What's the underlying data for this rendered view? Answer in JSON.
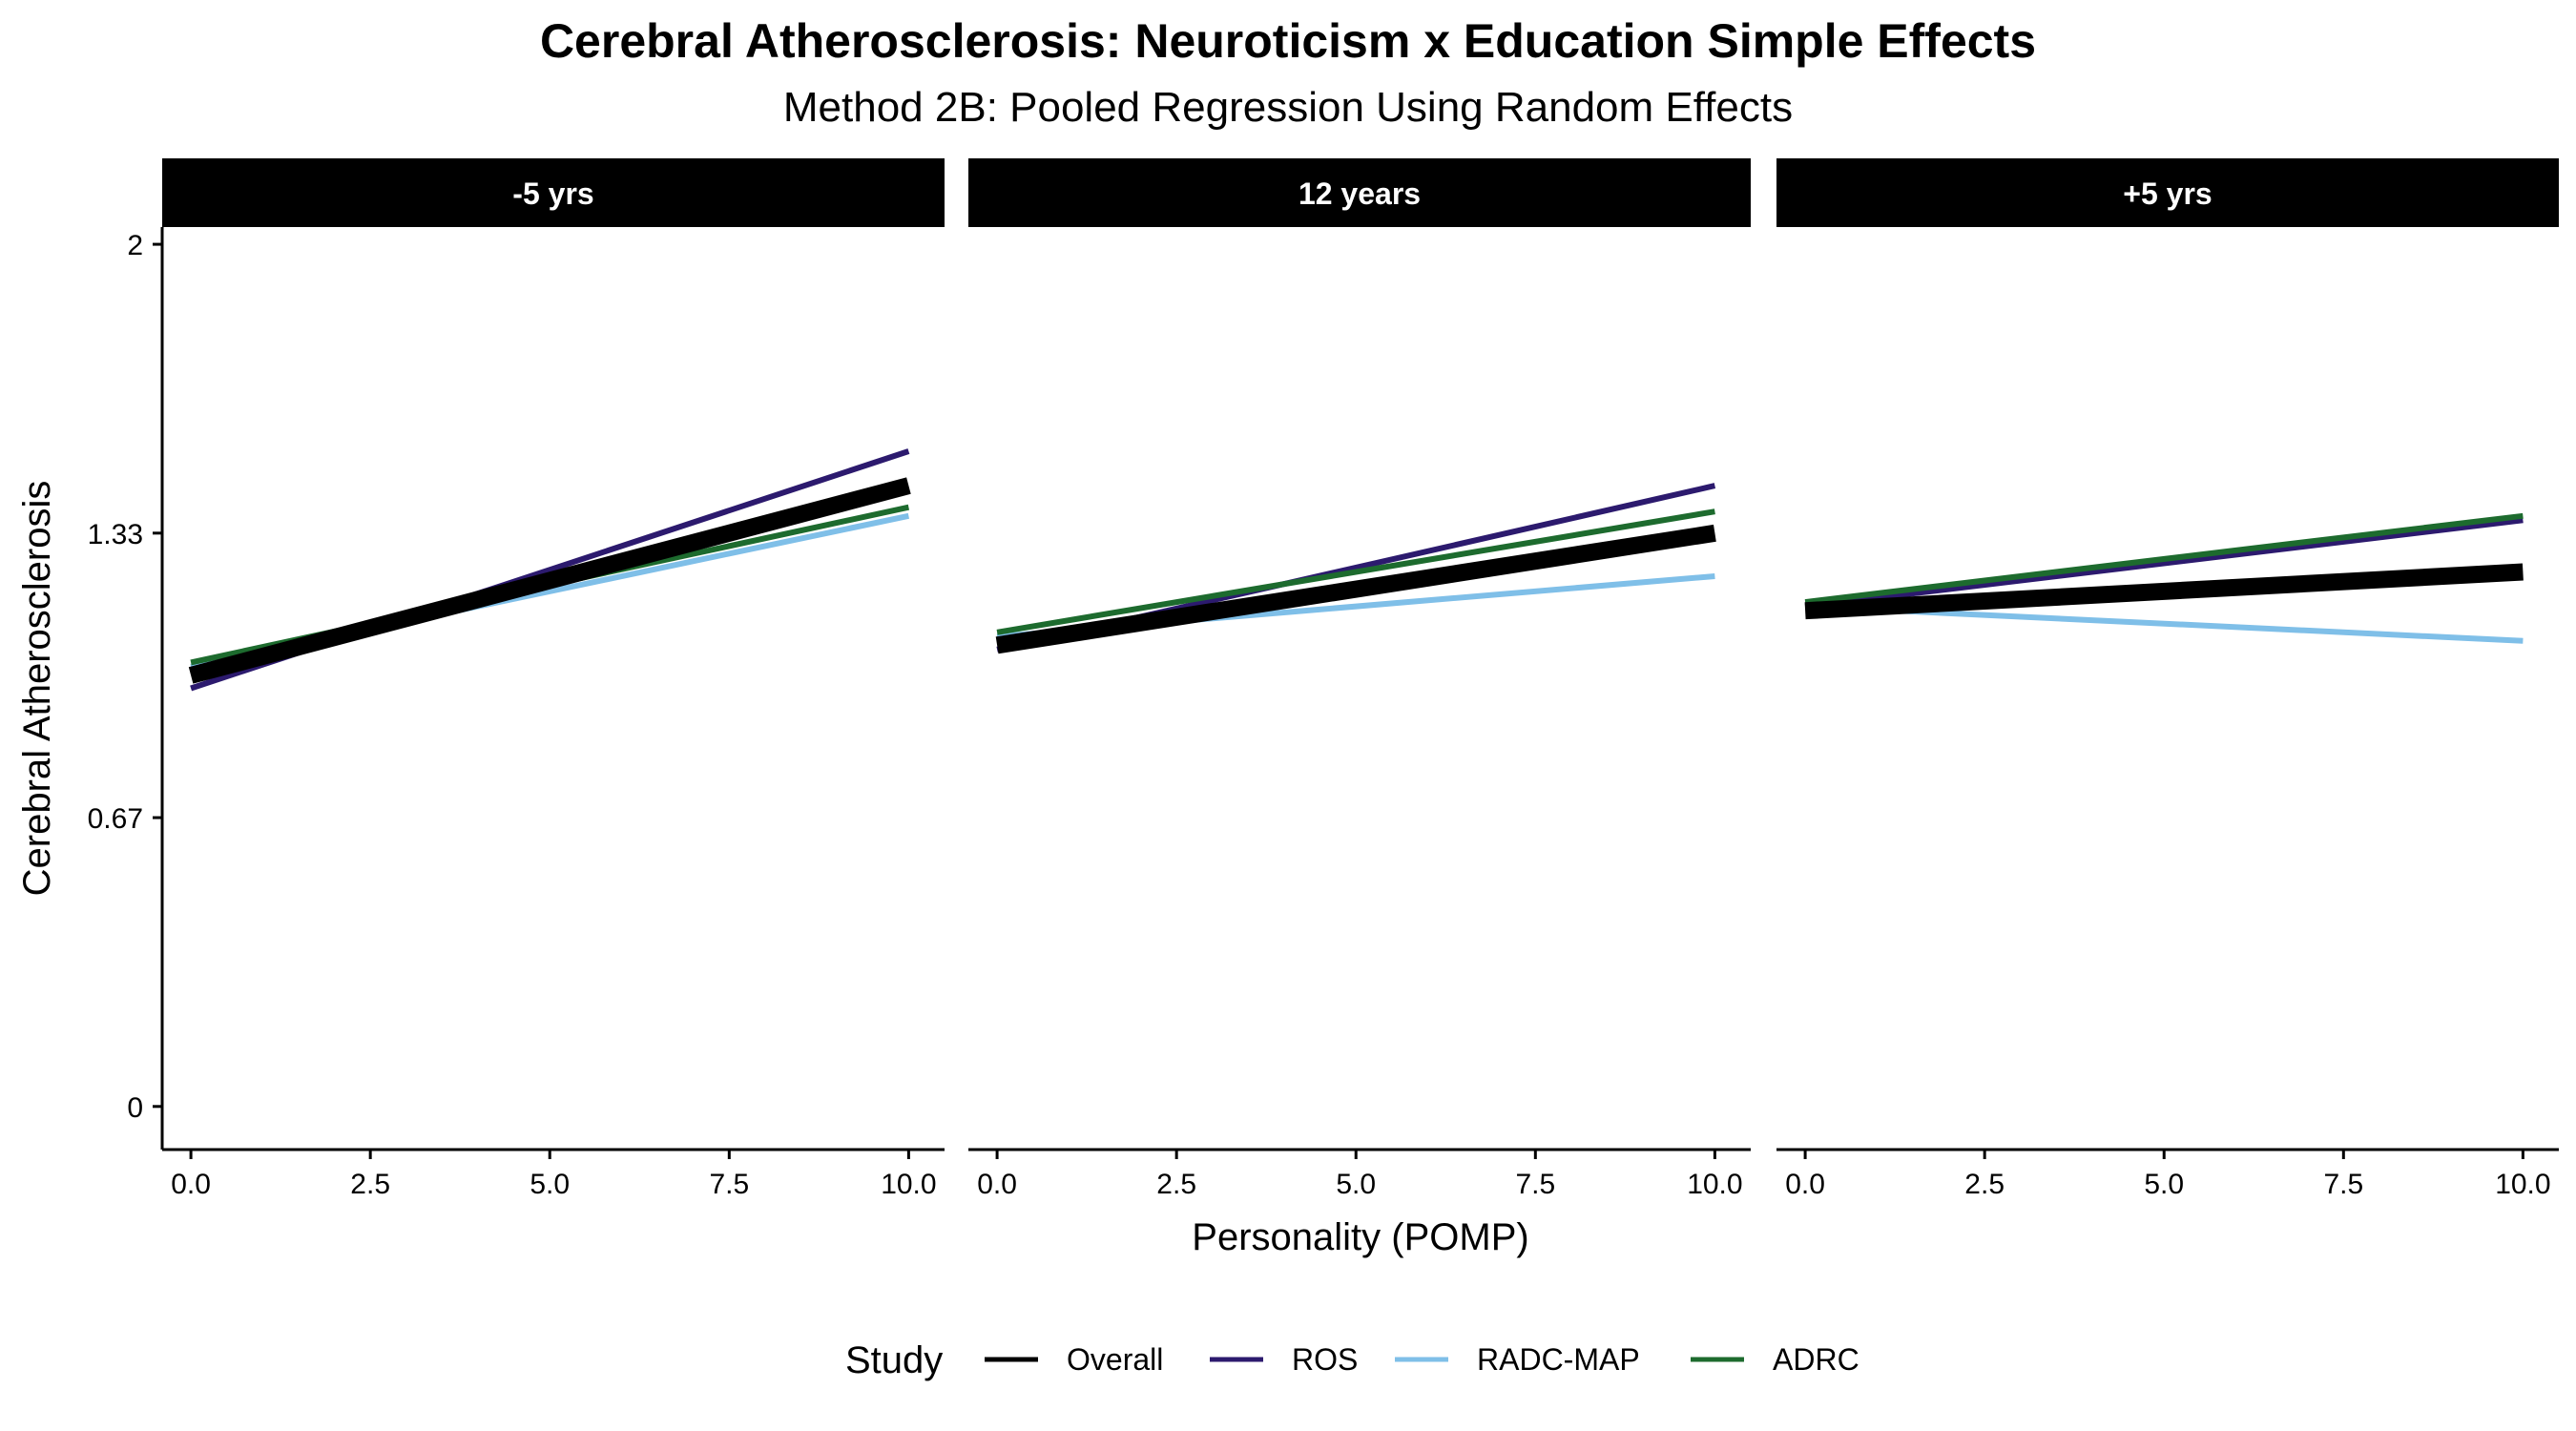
{
  "chart_data": {
    "type": "line",
    "title": "Cerebral Atherosclerosis: Neuroticism x Education Simple Effects",
    "subtitle": "Method 2B: Pooled Regression Using Random Effects",
    "xlabel": "Personality (POMP)",
    "ylabel": "Cerebral Atherosclerosis",
    "xlim": [
      -0.4,
      10.5
    ],
    "ylim": [
      -0.1,
      2.04
    ],
    "x_ticks": [
      0.0,
      2.5,
      5.0,
      7.5,
      10.0
    ],
    "x_tick_labels": [
      "0.0",
      "2.5",
      "5.0",
      "7.5",
      "10.0"
    ],
    "y_ticks": [
      0,
      0.67,
      1.33,
      2
    ],
    "y_tick_labels": [
      "0",
      "0.67",
      "1.33",
      "2"
    ],
    "grid": false,
    "legend": {
      "title": "Study",
      "position": "bottom",
      "entries": [
        "Overall",
        "ROS",
        "RADC-MAP",
        "ADRC"
      ]
    },
    "series_styles": [
      {
        "name": "Overall",
        "color": "#000000",
        "width": 18
      },
      {
        "name": "ROS",
        "color": "#2c1a6e",
        "width": 6
      },
      {
        "name": "RADC-MAP",
        "color": "#7fbfe8",
        "width": 6
      },
      {
        "name": "ADRC",
        "color": "#1d6b2e",
        "width": 6
      }
    ],
    "panels": [
      {
        "label": "-5 yrs",
        "series": [
          {
            "name": "Overall",
            "x": [
              0,
              10
            ],
            "y": [
              1.0,
              1.44
            ]
          },
          {
            "name": "ROS",
            "x": [
              0,
              10
            ],
            "y": [
              0.97,
              1.52
            ]
          },
          {
            "name": "RADC-MAP",
            "x": [
              0,
              10
            ],
            "y": [
              1.02,
              1.37
            ]
          },
          {
            "name": "ADRC",
            "x": [
              0,
              10
            ],
            "y": [
              1.03,
              1.39
            ]
          }
        ]
      },
      {
        "label": "12 years",
        "series": [
          {
            "name": "Overall",
            "x": [
              0,
              10
            ],
            "y": [
              1.07,
              1.33
            ]
          },
          {
            "name": "ROS",
            "x": [
              0,
              10
            ],
            "y": [
              1.06,
              1.44
            ]
          },
          {
            "name": "RADC-MAP",
            "x": [
              0,
              10
            ],
            "y": [
              1.09,
              1.23
            ]
          },
          {
            "name": "ADRC",
            "x": [
              0,
              10
            ],
            "y": [
              1.1,
              1.38
            ]
          }
        ]
      },
      {
        "label": "+5 yrs",
        "series": [
          {
            "name": "Overall",
            "x": [
              0,
              10
            ],
            "y": [
              1.15,
              1.24
            ]
          },
          {
            "name": "ROS",
            "x": [
              0,
              10
            ],
            "y": [
              1.16,
              1.36
            ]
          },
          {
            "name": "RADC-MAP",
            "x": [
              0,
              10
            ],
            "y": [
              1.16,
              1.08
            ]
          },
          {
            "name": "ADRC",
            "x": [
              0,
              10
            ],
            "y": [
              1.17,
              1.37
            ]
          }
        ]
      }
    ]
  }
}
